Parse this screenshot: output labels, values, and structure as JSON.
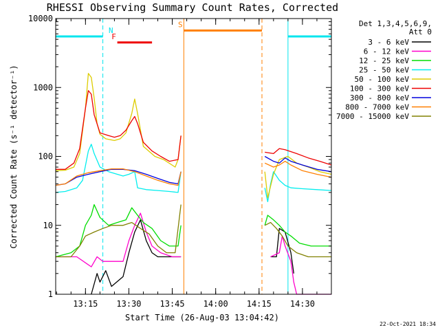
{
  "chart_data": {
    "type": "line",
    "title": "RHESSI Observing Summary Count Rates, Corrected",
    "xlabel": "Start Time (26-Aug-03 13:04:42)",
    "ylabel": "Corrected Count Rate (s⁻¹ detector⁻¹)",
    "yscale": "log",
    "ylim": [
      1,
      10000
    ],
    "xlim": [
      "13:04:42",
      "14:40:00"
    ],
    "x_ticks": [
      "13:15",
      "13:30",
      "13:45",
      "14:00",
      "14:15",
      "14:30"
    ],
    "y_ticks": [
      "1",
      "10",
      "100",
      "1000",
      "10000"
    ],
    "legend_title": [
      "Det 1,3,4,5,6,9,",
      "Att 0"
    ],
    "legend_position": "right",
    "grid": false,
    "data_gap": [
      "13:49",
      "14:17"
    ],
    "timestamp": "22-Oct-2021 18:34",
    "markers": [
      {
        "label": "N",
        "color": "#00e5ee",
        "level": 5500,
        "segments": [
          [
            "13:04:42",
            "13:21"
          ],
          [
            "14:25",
            "14:40"
          ]
        ],
        "boundaries": [
          "13:21",
          "14:25"
        ],
        "boundary_style": [
          "dashed",
          "solid"
        ],
        "label_at": "13:23"
      },
      {
        "label": "F",
        "color": "#ee0000",
        "level": 4500,
        "segments": [
          [
            "13:26",
            "13:38"
          ]
        ],
        "boundaries": [],
        "label_at": "13:24"
      },
      {
        "label": "S",
        "color": "#ff7f00",
        "level": 6700,
        "segments": [
          [
            "13:49",
            "14:16"
          ]
        ],
        "boundaries": [
          "13:49",
          "14:16"
        ],
        "boundary_style": [
          "solid",
          "dashed"
        ],
        "label_at": "13:47"
      }
    ],
    "series": [
      {
        "name": "3 - 6 keV",
        "color": "#000000",
        "points": [
          [
            "13:17",
            1
          ],
          [
            "13:19",
            2
          ],
          [
            "13:20",
            1.5
          ],
          [
            "13:22",
            2.2
          ],
          [
            "13:24",
            1.3
          ],
          [
            "13:28",
            1.8
          ],
          [
            "13:30",
            4
          ],
          [
            "13:32",
            8
          ],
          [
            "13:34",
            12
          ],
          [
            "13:36",
            6
          ],
          [
            "13:38",
            4
          ],
          [
            "13:40",
            3.5
          ],
          [
            "13:45",
            3.5
          ],
          [
            "13:48",
            3.5
          ],
          null,
          [
            "14:19",
            3.5
          ],
          [
            "14:21",
            3.5
          ],
          [
            "14:22",
            9
          ],
          [
            "14:24",
            8
          ],
          [
            "14:26",
            4
          ],
          [
            "14:27",
            2
          ]
        ]
      },
      {
        "name": "6 - 12 keV",
        "color": "#ff00cc",
        "points": [
          [
            "13:04:42",
            3.5
          ],
          [
            "13:12",
            3.5
          ],
          [
            "13:17",
            2.5
          ],
          [
            "13:19",
            3.5
          ],
          [
            "13:21",
            3
          ],
          [
            "13:24",
            3
          ],
          [
            "13:28",
            3
          ],
          [
            "13:30",
            6
          ],
          [
            "13:32",
            10
          ],
          [
            "13:34",
            15
          ],
          [
            "13:36",
            8
          ],
          [
            "13:38",
            5
          ],
          [
            "13:41",
            4
          ],
          [
            "13:45",
            3.5
          ],
          [
            "13:48",
            3.5
          ],
          null,
          [
            "14:19",
            3.5
          ],
          [
            "14:22",
            4
          ],
          [
            "14:23",
            7
          ],
          [
            "14:24",
            5
          ],
          [
            "14:26",
            3
          ],
          [
            "14:27",
            1.5
          ],
          [
            "14:28",
            1
          ],
          [
            "14:35",
            1
          ],
          [
            "14:40",
            1
          ]
        ]
      },
      {
        "name": "12 - 25 keV",
        "color": "#00dd00",
        "points": [
          [
            "13:04:42",
            3.5
          ],
          [
            "13:10",
            4
          ],
          [
            "13:13",
            5
          ],
          [
            "13:15",
            10
          ],
          [
            "13:17",
            14
          ],
          [
            "13:18",
            20
          ],
          [
            "13:20",
            13
          ],
          [
            "13:23",
            10
          ],
          [
            "13:26",
            11
          ],
          [
            "13:29",
            12
          ],
          [
            "13:31",
            18
          ],
          [
            "13:33",
            14
          ],
          [
            "13:35",
            11
          ],
          [
            "13:38",
            9
          ],
          [
            "13:41",
            6
          ],
          [
            "13:44",
            5
          ],
          [
            "13:47",
            5
          ],
          [
            "13:48",
            10
          ],
          null,
          [
            "14:17",
            10
          ],
          [
            "14:18",
            14
          ],
          [
            "14:20",
            12
          ],
          [
            "14:22",
            10
          ],
          [
            "14:24",
            8
          ],
          [
            "14:26",
            7
          ],
          [
            "14:29",
            5.5
          ],
          [
            "14:33",
            5
          ],
          [
            "14:40",
            5
          ]
        ]
      },
      {
        "name": "25 - 50 keV",
        "color": "#00eeee",
        "points": [
          [
            "13:04:42",
            30
          ],
          [
            "13:08",
            31
          ],
          [
            "13:12",
            35
          ],
          [
            "13:14",
            45
          ],
          [
            "13:16",
            120
          ],
          [
            "13:17",
            150
          ],
          [
            "13:18",
            110
          ],
          [
            "13:20",
            70
          ],
          [
            "13:23",
            60
          ],
          [
            "13:26",
            55
          ],
          [
            "13:28",
            52
          ],
          [
            "13:30",
            55
          ],
          [
            "13:32",
            60
          ],
          [
            "13:33",
            35
          ],
          [
            "13:36",
            33
          ],
          [
            "13:40",
            32
          ],
          [
            "13:44",
            31
          ],
          [
            "13:47",
            30
          ],
          [
            "13:48",
            60
          ],
          null,
          [
            "14:17",
            35
          ],
          [
            "14:18",
            22
          ],
          [
            "14:19",
            40
          ],
          [
            "14:20",
            60
          ],
          [
            "14:22",
            45
          ],
          [
            "14:24",
            38
          ],
          [
            "14:26",
            35
          ],
          [
            "14:30",
            34
          ],
          [
            "14:35",
            33
          ],
          [
            "14:40",
            32
          ]
        ]
      },
      {
        "name": "50 - 100 keV",
        "color": "#ddcc00",
        "points": [
          [
            "13:04:42",
            62
          ],
          [
            "13:08",
            63
          ],
          [
            "13:11",
            70
          ],
          [
            "13:13",
            110
          ],
          [
            "13:15",
            500
          ],
          [
            "13:16",
            1600
          ],
          [
            "13:17",
            1400
          ],
          [
            "13:18",
            700
          ],
          [
            "13:19",
            300
          ],
          [
            "13:20",
            210
          ],
          [
            "13:22",
            180
          ],
          [
            "13:25",
            170
          ],
          [
            "13:27",
            180
          ],
          [
            "13:29",
            220
          ],
          [
            "13:31",
            420
          ],
          [
            "13:32",
            680
          ],
          [
            "13:33",
            420
          ],
          [
            "13:35",
            140
          ],
          [
            "13:39",
            100
          ],
          [
            "13:42",
            90
          ],
          [
            "13:46",
            70
          ],
          [
            "13:47",
            90
          ],
          [
            "13:48",
            200
          ],
          null,
          [
            "14:17",
            60
          ],
          [
            "14:18",
            25
          ],
          [
            "14:20",
            55
          ],
          [
            "14:22",
            90
          ],
          [
            "14:25",
            100
          ],
          [
            "14:28",
            80
          ],
          [
            "14:32",
            70
          ],
          [
            "14:36",
            60
          ],
          [
            "14:40",
            55
          ]
        ]
      },
      {
        "name": "100 - 300 keV",
        "color": "#ee0000",
        "points": [
          [
            "13:04:42",
            65
          ],
          [
            "13:08",
            65
          ],
          [
            "13:11",
            80
          ],
          [
            "13:13",
            130
          ],
          [
            "13:15",
            500
          ],
          [
            "13:16",
            900
          ],
          [
            "13:17",
            800
          ],
          [
            "13:18",
            400
          ],
          [
            "13:20",
            220
          ],
          [
            "13:23",
            200
          ],
          [
            "13:25",
            190
          ],
          [
            "13:27",
            200
          ],
          [
            "13:29",
            240
          ],
          [
            "13:31",
            330
          ],
          [
            "13:32",
            380
          ],
          [
            "13:33",
            300
          ],
          [
            "13:35",
            160
          ],
          [
            "13:38",
            120
          ],
          [
            "13:41",
            100
          ],
          [
            "13:44",
            85
          ],
          [
            "13:47",
            90
          ],
          [
            "13:48",
            200
          ],
          null,
          [
            "14:17",
            115
          ],
          [
            "14:20",
            110
          ],
          [
            "14:22",
            130
          ],
          [
            "14:24",
            125
          ],
          [
            "14:28",
            110
          ],
          [
            "14:32",
            95
          ],
          [
            "14:36",
            85
          ],
          [
            "14:40",
            75
          ]
        ]
      },
      {
        "name": "300 - 800 keV",
        "color": "#0000dd",
        "points": [
          [
            "13:04:42",
            38
          ],
          [
            "13:08",
            40
          ],
          [
            "13:12",
            50
          ],
          [
            "13:16",
            55
          ],
          [
            "13:20",
            60
          ],
          [
            "13:24",
            65
          ],
          [
            "13:28",
            65
          ],
          [
            "13:32",
            62
          ],
          [
            "13:36",
            55
          ],
          [
            "13:40",
            48
          ],
          [
            "13:44",
            42
          ],
          [
            "13:47",
            40
          ],
          [
            "13:48",
            60
          ],
          null,
          [
            "14:17",
            100
          ],
          [
            "14:20",
            85
          ],
          [
            "14:22",
            80
          ],
          [
            "14:24",
            95
          ],
          [
            "14:26",
            85
          ],
          [
            "14:30",
            75
          ],
          [
            "14:35",
            65
          ],
          [
            "14:40",
            60
          ]
        ]
      },
      {
        "name": "800 - 7000 keV",
        "color": "#ff7f00",
        "points": [
          [
            "13:04:42",
            38
          ],
          [
            "13:08",
            40
          ],
          [
            "13:12",
            52
          ],
          [
            "13:16",
            58
          ],
          [
            "13:20",
            62
          ],
          [
            "13:24",
            66
          ],
          [
            "13:28",
            66
          ],
          [
            "13:32",
            60
          ],
          [
            "13:36",
            52
          ],
          [
            "13:40",
            45
          ],
          [
            "13:44",
            40
          ],
          [
            "13:47",
            38
          ],
          [
            "13:48",
            60
          ],
          null,
          [
            "14:17",
            80
          ],
          [
            "14:20",
            70
          ],
          [
            "14:22",
            75
          ],
          [
            "14:24",
            85
          ],
          [
            "14:26",
            75
          ],
          [
            "14:30",
            62
          ],
          [
            "14:35",
            55
          ],
          [
            "14:40",
            50
          ]
        ]
      },
      {
        "name": "7000 - 15000 keV",
        "color": "#808000",
        "points": [
          [
            "13:04:42",
            3.5
          ],
          [
            "13:10",
            3.5
          ],
          [
            "13:13",
            5
          ],
          [
            "13:15",
            7
          ],
          [
            "13:18",
            8
          ],
          [
            "13:21",
            9
          ],
          [
            "13:24",
            10
          ],
          [
            "13:28",
            10
          ],
          [
            "13:31",
            11
          ],
          [
            "13:34",
            9
          ],
          [
            "13:37",
            7.5
          ],
          [
            "13:40",
            5
          ],
          [
            "13:43",
            4
          ],
          [
            "13:46",
            4
          ],
          [
            "13:48",
            20
          ],
          null,
          [
            "14:17",
            10
          ],
          [
            "14:19",
            11
          ],
          [
            "14:21",
            9
          ],
          [
            "14:23",
            7
          ],
          [
            "14:25",
            5
          ],
          [
            "14:28",
            4
          ],
          [
            "14:32",
            3.5
          ],
          [
            "14:40",
            3.5
          ]
        ]
      }
    ]
  }
}
